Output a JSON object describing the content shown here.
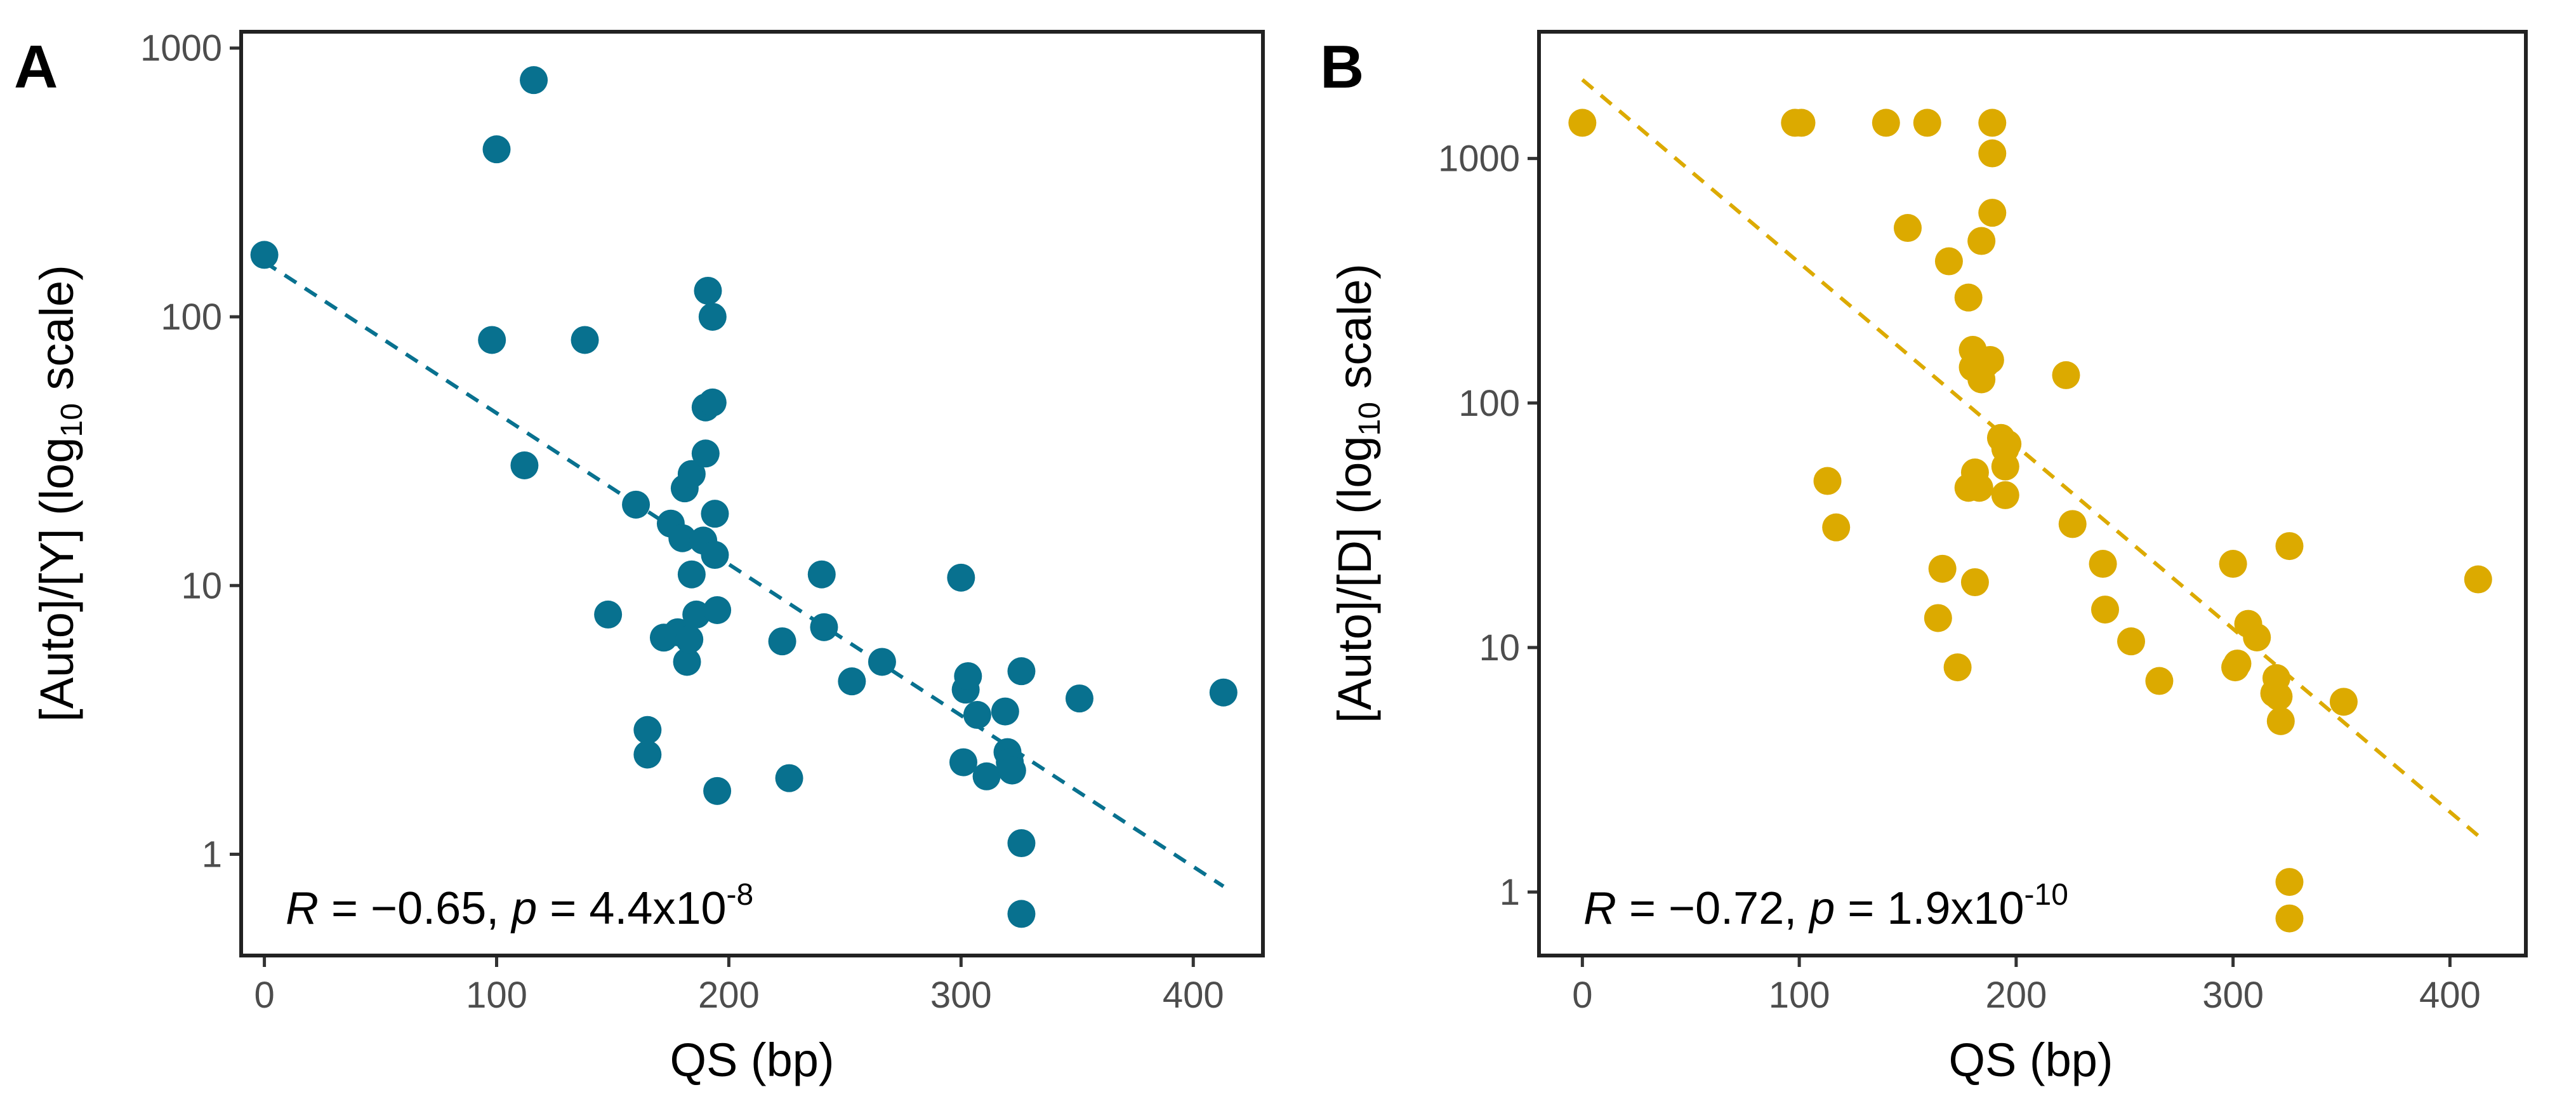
{
  "chart_data": [
    {
      "type": "scatter",
      "panel": "A",
      "xlabel": "QS (bp)",
      "ylabel_prefix": "[Auto]/[Y] (log",
      "ylabel_sub": "10",
      "ylabel_suffix": " scale)",
      "yscale": "log10",
      "xlim": [
        -10,
        430
      ],
      "ylim": [
        0.42,
        1150
      ],
      "xticks": [
        0,
        100,
        200,
        300,
        400
      ],
      "xtick_labels": [
        "0",
        "100",
        "200",
        "300",
        "400"
      ],
      "yticks": [
        1,
        10,
        100,
        1000
      ],
      "ytick_labels": [
        "1",
        "10",
        "100",
        "1000"
      ],
      "color": "#08718f",
      "trend": {
        "x": [
          0,
          413
        ],
        "y": [
          160,
          0.76
        ]
      },
      "annotation": {
        "r_label": "R",
        "r_text": " = −0.65, ",
        "p_label": "p",
        "p_text": " = 4.4x10",
        "p_exp": "-8"
      },
      "x": [
        0,
        100,
        116,
        98,
        112,
        138,
        148,
        160,
        165,
        165,
        172,
        175,
        178,
        180,
        181,
        182,
        183,
        184,
        184,
        186,
        189,
        190,
        190,
        191,
        193,
        193,
        194,
        194,
        195,
        195,
        223,
        226,
        240,
        241,
        253,
        266,
        300,
        301,
        302,
        303,
        307,
        311,
        319,
        320,
        321,
        322,
        326,
        326,
        326,
        351,
        413
      ],
      "y": [
        170,
        420,
        760,
        82,
        28,
        82,
        7.8,
        20,
        2.9,
        2.35,
        6.4,
        17,
        6.7,
        15,
        23,
        5.2,
        6.3,
        26,
        11,
        7.8,
        14.7,
        31,
        46,
        125,
        100,
        48,
        18.5,
        13,
        8.1,
        1.72,
        6.2,
        1.92,
        11,
        7,
        4.4,
        5.2,
        10.7,
        2.2,
        4.1,
        4.6,
        3.3,
        1.95,
        3.4,
        2.4,
        2.2,
        2.05,
        4.8,
        1.1,
        0.6,
        3.8,
        4
      ]
    },
    {
      "type": "scatter",
      "panel": "B",
      "xlabel": "QS (bp)",
      "ylabel_prefix": "[Auto]/[D] (log",
      "ylabel_sub": "10",
      "ylabel_suffix": " scale)",
      "yscale": "log10",
      "xlim": [
        -20,
        435
      ],
      "ylim": [
        0.55,
        3300
      ],
      "xticks": [
        0,
        100,
        200,
        300,
        400
      ],
      "xtick_labels": [
        "0",
        "100",
        "200",
        "300",
        "400"
      ],
      "yticks": [
        1,
        10,
        100,
        1000
      ],
      "ytick_labels": [
        "1",
        "10",
        "100",
        "1000"
      ],
      "color": "#dcaa00",
      "trend": {
        "x": [
          0,
          413
        ],
        "y": [
          2100,
          1.7
        ]
      },
      "annotation": {
        "r_label": "R",
        "r_text": " = −0.72, ",
        "p_label": "p",
        "p_text": " = 1.9x10",
        "p_exp": "-10"
      },
      "x": [
        0,
        98,
        101,
        140,
        159,
        189,
        189,
        189,
        150,
        169,
        184,
        178,
        180,
        180,
        182,
        184,
        186,
        188,
        223,
        193,
        195,
        195,
        196,
        195,
        226,
        113,
        117,
        164,
        166,
        173,
        178,
        181,
        181,
        183,
        240,
        241,
        253,
        266,
        300,
        301,
        302,
        307,
        311,
        319,
        320,
        321,
        322,
        326,
        326,
        326,
        351,
        413
      ],
      "y": [
        1400,
        1400,
        1400,
        1400,
        1400,
        1400,
        1050,
        600,
        520,
        380,
        460,
        270,
        165,
        140,
        150,
        125,
        145,
        150,
        130,
        72,
        65,
        55,
        68,
        42,
        32,
        48,
        31,
        13.2,
        21,
        8.3,
        45,
        18.5,
        52,
        45,
        22,
        14.3,
        10.6,
        7.3,
        22,
        8.3,
        8.6,
        12.5,
        11,
        6.5,
        7.5,
        6.3,
        5,
        26,
        1.1,
        0.78,
        6,
        19
      ]
    }
  ]
}
